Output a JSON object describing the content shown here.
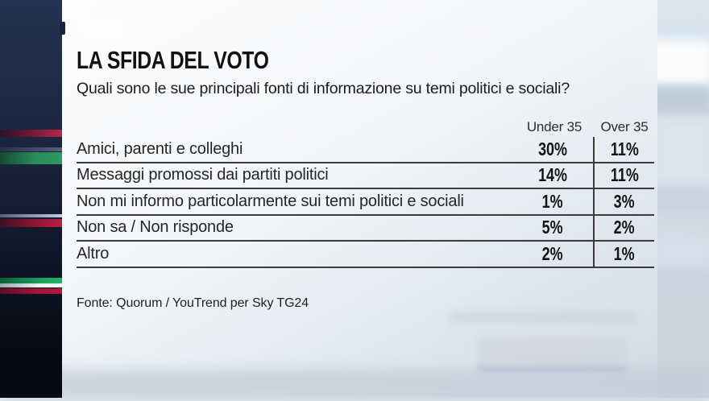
{
  "title": "LA SFIDA DEL VOTO",
  "question": "Quali sono le sue principali fonti di informazione su temi politici e sociali?",
  "source": "Fonte: Quorum / YouTrend per Sky TG24",
  "table": {
    "columns": [
      "Under 35",
      "Over 35"
    ],
    "rows": [
      {
        "label": "Amici, parenti e colleghi",
        "under35": "30%",
        "over35": "11%"
      },
      {
        "label": "Messaggi promossi dai partiti politici",
        "under35": "14%",
        "over35": "11%"
      },
      {
        "label": "Non mi informo particolarmente sui temi politici e sociali",
        "under35": "1%",
        "over35": "3%"
      },
      {
        "label": "Non sa / Non risponde",
        "under35": "5%",
        "over35": "2%"
      },
      {
        "label": "Altro",
        "under35": "2%",
        "over35": "1%"
      }
    ]
  },
  "chart_data": {
    "type": "table",
    "title": "LA SFIDA DEL VOTO",
    "subtitle": "Quali sono le sue principali fonti di informazione su temi politici e sociali?",
    "categories": [
      "Amici, parenti e colleghi",
      "Messaggi promossi dai partiti politici",
      "Non mi informo particolarmente sui temi politici e sociali",
      "Non sa / Non risponde",
      "Altro"
    ],
    "series": [
      {
        "name": "Under 35",
        "values": [
          30,
          14,
          1,
          5,
          2
        ]
      },
      {
        "name": "Over 35",
        "values": [
          11,
          11,
          3,
          2,
          1
        ]
      }
    ],
    "unit": "%",
    "source": "Fonte: Quorum / YouTrend per Sky TG24"
  },
  "colors": {
    "accent_red": "#a82045",
    "accent_green": "#2b9a60",
    "strip_navy": "#1b2742",
    "table_line": "#3b3b3b",
    "text": "#1d1d1d"
  }
}
